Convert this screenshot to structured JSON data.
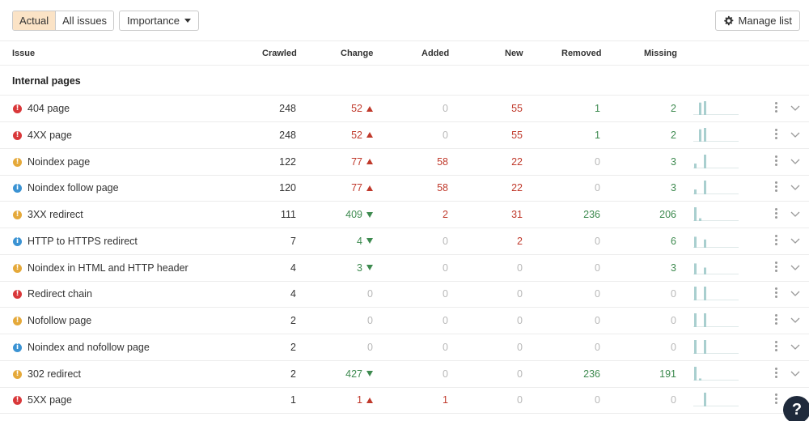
{
  "toolbar": {
    "tab_actual": "Actual",
    "tab_all_issues": "All issues",
    "importance_label": "Importance",
    "manage_list_label": "Manage list"
  },
  "columns": {
    "issue": "Issue",
    "crawled": "Crawled",
    "change": "Change",
    "added": "Added",
    "new": "New",
    "removed": "Removed",
    "missing": "Missing"
  },
  "section_title": "Internal pages",
  "colors": {
    "error": "#d9383a",
    "warning": "#e5a93a",
    "notice": "#3b93d3",
    "negative": "#c0392b",
    "positive": "#3d8a4f",
    "muted": "#b8b8b8",
    "spark": "#a9cfcf",
    "active_tab": "#fbe3c6"
  },
  "rows": [
    {
      "name": "404 page",
      "severity": "error",
      "crawled": "248",
      "change": "52",
      "change_dir": "up",
      "added": "0",
      "new": "55",
      "removed": "1",
      "missing": "2",
      "spark": [
        0,
        0.9,
        1
      ]
    },
    {
      "name": "4XX page",
      "severity": "error",
      "crawled": "248",
      "change": "52",
      "change_dir": "up",
      "added": "0",
      "new": "55",
      "removed": "1",
      "missing": "2",
      "spark": [
        0,
        0.9,
        1
      ]
    },
    {
      "name": "Noindex page",
      "severity": "warning",
      "crawled": "122",
      "change": "77",
      "change_dir": "up",
      "added": "58",
      "new": "22",
      "removed": "0",
      "missing": "3",
      "spark": [
        0.35,
        0,
        1
      ]
    },
    {
      "name": "Noindex follow page",
      "severity": "notice",
      "crawled": "120",
      "change": "77",
      "change_dir": "up",
      "added": "58",
      "new": "22",
      "removed": "0",
      "missing": "3",
      "spark": [
        0.35,
        0,
        1
      ]
    },
    {
      "name": "3XX redirect",
      "severity": "warning",
      "crawled": "111",
      "change": "409",
      "change_dir": "down",
      "added": "2",
      "new": "31",
      "removed": "236",
      "missing": "206",
      "spark": [
        1,
        0.2,
        0
      ]
    },
    {
      "name": "HTTP to HTTPS redirect",
      "severity": "notice",
      "crawled": "7",
      "change": "4",
      "change_dir": "down",
      "added": "0",
      "new": "2",
      "removed": "0",
      "missing": "6",
      "spark": [
        0.8,
        0,
        0.6
      ]
    },
    {
      "name": "Noindex in HTML and HTTP header",
      "severity": "warning",
      "crawled": "4",
      "change": "3",
      "change_dir": "down",
      "added": "0",
      "new": "0",
      "removed": "0",
      "missing": "3",
      "spark": [
        0.8,
        0,
        0.5
      ]
    },
    {
      "name": "Redirect chain",
      "severity": "error",
      "crawled": "4",
      "change": "0",
      "change_dir": "none",
      "added": "0",
      "new": "0",
      "removed": "0",
      "missing": "0",
      "spark": [
        1,
        0,
        1
      ]
    },
    {
      "name": "Nofollow page",
      "severity": "warning",
      "crawled": "2",
      "change": "0",
      "change_dir": "none",
      "added": "0",
      "new": "0",
      "removed": "0",
      "missing": "0",
      "spark": [
        1,
        0,
        1
      ]
    },
    {
      "name": "Noindex and nofollow page",
      "severity": "notice",
      "crawled": "2",
      "change": "0",
      "change_dir": "none",
      "added": "0",
      "new": "0",
      "removed": "0",
      "missing": "0",
      "spark": [
        1,
        0,
        1
      ]
    },
    {
      "name": "302 redirect",
      "severity": "warning",
      "crawled": "2",
      "change": "427",
      "change_dir": "down",
      "added": "0",
      "new": "0",
      "removed": "236",
      "missing": "191",
      "spark": [
        1,
        0.15,
        0
      ]
    },
    {
      "name": "5XX page",
      "severity": "error",
      "crawled": "1",
      "change": "1",
      "change_dir": "up",
      "added": "1",
      "new": "0",
      "removed": "0",
      "missing": "0",
      "spark": [
        0,
        0,
        1
      ]
    }
  ],
  "help_label": "?"
}
